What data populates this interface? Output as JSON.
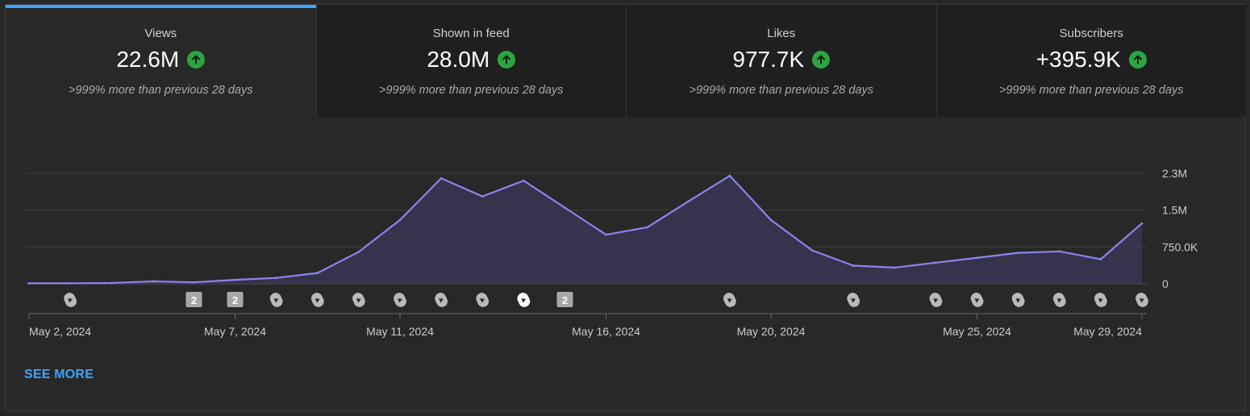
{
  "colors": {
    "accent": "#3ea6ff",
    "line": "#8c83f0",
    "positive": "#2ba640"
  },
  "metrics": [
    {
      "label": "Views",
      "value": "22.6M",
      "icon": "arrow-up-icon",
      "sub": ">999% more than previous 28 days",
      "active": true
    },
    {
      "label": "Shown in feed",
      "value": "28.0M",
      "icon": "arrow-up-icon",
      "sub": ">999% more than previous 28 days",
      "active": false
    },
    {
      "label": "Likes",
      "value": "977.7K",
      "icon": "arrow-up-icon",
      "sub": ">999% more than previous 28 days",
      "active": false
    },
    {
      "label": "Subscribers",
      "value": "+395.9K",
      "icon": "arrow-up-icon",
      "sub": ">999% more than previous 28 days",
      "active": false
    }
  ],
  "chart_data": {
    "type": "area",
    "x": [
      "May 2, 2024",
      "May 3, 2024",
      "May 4, 2024",
      "May 5, 2024",
      "May 6, 2024",
      "May 7, 2024",
      "May 8, 2024",
      "May 9, 2024",
      "May 10, 2024",
      "May 11, 2024",
      "May 12, 2024",
      "May 13, 2024",
      "May 14, 2024",
      "May 15, 2024",
      "May 16, 2024",
      "May 17, 2024",
      "May 18, 2024",
      "May 19, 2024",
      "May 20, 2024",
      "May 21, 2024",
      "May 22, 2024",
      "May 23, 2024",
      "May 24, 2024",
      "May 25, 2024",
      "May 26, 2024",
      "May 27, 2024",
      "May 28, 2024",
      "May 29, 2024"
    ],
    "series": [
      {
        "values": [
          10000,
          10000,
          15000,
          50000,
          30000,
          80000,
          120000,
          220000,
          650000,
          1300000,
          2150000,
          1780000,
          2100000,
          1550000,
          1000000,
          1150000,
          1680000,
          2200000,
          1300000,
          680000,
          370000,
          330000,
          430000,
          530000,
          630000,
          660000,
          500000,
          1230000
        ]
      }
    ],
    "yticks": [
      "2.3M",
      "1.5M",
      "750.0K",
      "0"
    ],
    "ytick_values": [
      2250000,
      1500000,
      750000,
      0
    ],
    "ylim": [
      0,
      2250000
    ],
    "xticks": [
      {
        "label": "May 2, 2024",
        "index": 0
      },
      {
        "label": "May 7, 2024",
        "index": 5
      },
      {
        "label": "May 11, 2024",
        "index": 9
      },
      {
        "label": "May 16, 2024",
        "index": 14
      },
      {
        "label": "May 20, 2024",
        "index": 18
      },
      {
        "label": "May 25, 2024",
        "index": 23
      },
      {
        "label": "May 29, 2024",
        "index": 27
      }
    ],
    "grid": true,
    "markers": [
      {
        "index": 1,
        "kind": "shorts-icon"
      },
      {
        "index": 4,
        "kind": "badge",
        "text": "2"
      },
      {
        "index": 5,
        "kind": "badge",
        "text": "2"
      },
      {
        "index": 6,
        "kind": "shorts-icon"
      },
      {
        "index": 7,
        "kind": "shorts-icon"
      },
      {
        "index": 8,
        "kind": "shorts-icon"
      },
      {
        "index": 9,
        "kind": "shorts-icon"
      },
      {
        "index": 10,
        "kind": "shorts-icon"
      },
      {
        "index": 11,
        "kind": "shorts-icon"
      },
      {
        "index": 12,
        "kind": "shorts-icon",
        "highlight": true
      },
      {
        "index": 13,
        "kind": "badge",
        "text": "2"
      },
      {
        "index": 17,
        "kind": "shorts-icon"
      },
      {
        "index": 20,
        "kind": "shorts-icon"
      },
      {
        "index": 22,
        "kind": "shorts-icon"
      },
      {
        "index": 23,
        "kind": "shorts-icon"
      },
      {
        "index": 24,
        "kind": "shorts-icon"
      },
      {
        "index": 25,
        "kind": "shorts-icon"
      },
      {
        "index": 26,
        "kind": "shorts-icon"
      },
      {
        "index": 27,
        "kind": "shorts-icon"
      }
    ]
  },
  "see_more": "SEE MORE"
}
